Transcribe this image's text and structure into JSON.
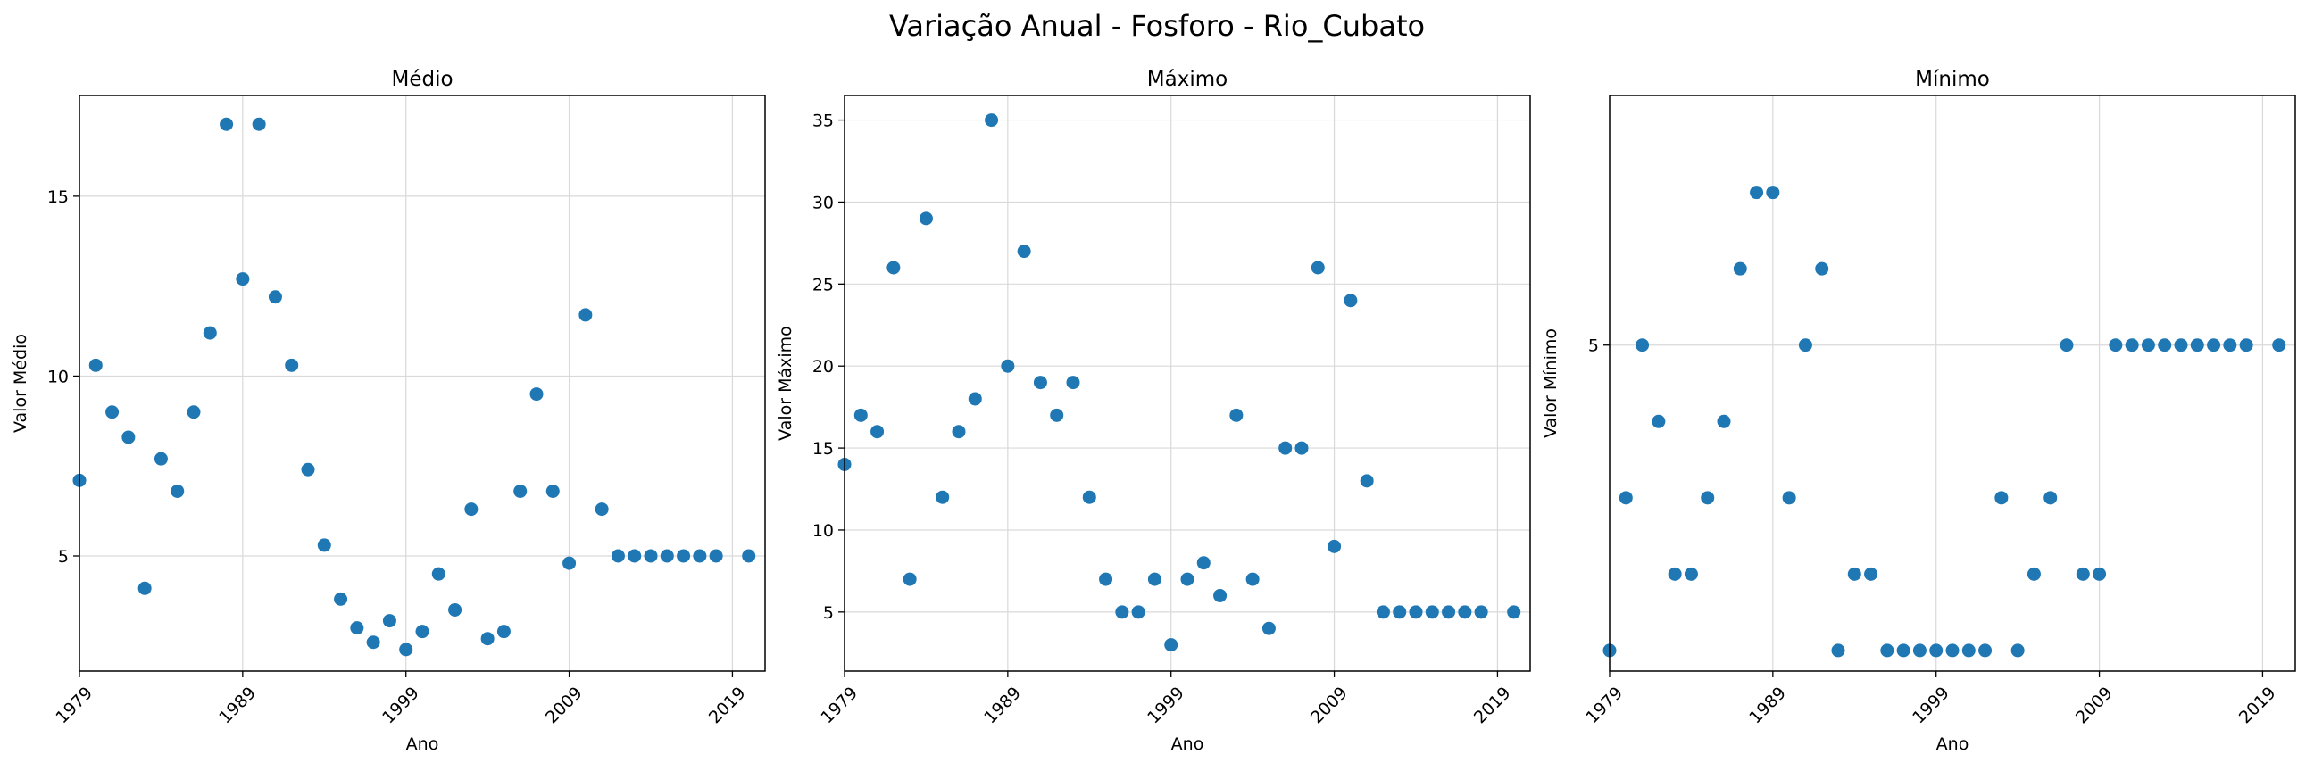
{
  "figure": {
    "title": "Variação Anual - Fosforo - Rio_Cubato"
  },
  "colors": {
    "point": "#1f77b4",
    "grid": "#d9d9d9",
    "axis": "#000000"
  },
  "chart_data": [
    {
      "type": "scatter",
      "title": "Médio",
      "xlabel": "Ano",
      "ylabel": "Valor Médio",
      "grid": true,
      "xlim": [
        1979,
        2021
      ],
      "ylim": [
        1.8,
        17.8
      ],
      "xticks": [
        "1979",
        "1989",
        "1999",
        "2009",
        "2019"
      ],
      "yticks": [
        "5",
        "10",
        "15"
      ],
      "series": [
        {
          "x": [
            1979,
            1980,
            1981,
            1982,
            1983,
            1984,
            1985,
            1986,
            1987,
            1988,
            1989,
            1990,
            1991,
            1992,
            1993,
            1994,
            1995,
            1996,
            1997,
            1998,
            1999,
            2000,
            2001,
            2002,
            2003,
            2004,
            2005,
            2006,
            2007,
            2008,
            2009,
            2010,
            2011,
            2012,
            2013,
            2014,
            2015,
            2016,
            2017,
            2018,
            2020
          ],
          "y": [
            7.1,
            10.3,
            9.0,
            8.3,
            4.1,
            7.7,
            6.8,
            9.0,
            11.2,
            17.0,
            12.7,
            17.0,
            12.2,
            10.3,
            7.4,
            5.3,
            3.8,
            3.0,
            2.6,
            3.2,
            2.4,
            2.9,
            4.5,
            3.5,
            6.3,
            2.7,
            2.9,
            6.8,
            9.5,
            6.8,
            4.8,
            11.7,
            6.3,
            5.0,
            5.0,
            5.0,
            5.0,
            5.0,
            5.0,
            5.0,
            5.0
          ]
        }
      ]
    },
    {
      "type": "scatter",
      "title": "Máximo",
      "xlabel": "Ano",
      "ylabel": "Valor Máximo",
      "grid": true,
      "xlim": [
        1979,
        2021
      ],
      "ylim": [
        1.4,
        36.5
      ],
      "xticks": [
        "1979",
        "1989",
        "1999",
        "2009",
        "2019"
      ],
      "yticks": [
        "5",
        "10",
        "15",
        "20",
        "25",
        "30",
        "35"
      ],
      "series": [
        {
          "x": [
            1979,
            1980,
            1981,
            1982,
            1983,
            1984,
            1985,
            1986,
            1987,
            1988,
            1989,
            1990,
            1991,
            1992,
            1993,
            1994,
            1995,
            1996,
            1997,
            1998,
            1999,
            2000,
            2001,
            2002,
            2003,
            2004,
            2005,
            2006,
            2007,
            2008,
            2009,
            2010,
            2011,
            2012,
            2013,
            2014,
            2015,
            2016,
            2017,
            2018,
            2020
          ],
          "y": [
            14,
            17,
            16,
            26,
            7,
            29,
            12,
            16,
            18,
            35,
            20,
            27,
            19,
            17,
            19,
            12,
            7,
            5,
            5,
            7,
            3,
            7,
            8,
            6,
            17,
            7,
            4,
            15,
            15,
            26,
            9,
            24,
            13,
            5,
            5,
            5,
            5,
            5,
            5,
            5,
            5
          ]
        }
      ]
    },
    {
      "type": "scatter",
      "title": "Mínimo",
      "xlabel": "Ano",
      "ylabel": "Valor Mínimo",
      "grid": true,
      "xlim": [
        1979,
        2021
      ],
      "ylim": [
        0.73,
        8.27
      ],
      "xticks": [
        "1979",
        "1989",
        "1999",
        "2009",
        "2019"
      ],
      "yticks": [
        "5"
      ],
      "series": [
        {
          "x": [
            1979,
            1980,
            1981,
            1982,
            1983,
            1984,
            1985,
            1986,
            1987,
            1988,
            1989,
            1990,
            1991,
            1992,
            1993,
            1994,
            1995,
            1996,
            1997,
            1998,
            1999,
            2000,
            2001,
            2002,
            2003,
            2004,
            2005,
            2006,
            2007,
            2008,
            2009,
            2010,
            2011,
            2012,
            2013,
            2014,
            2015,
            2016,
            2017,
            2018,
            2020
          ],
          "y": [
            1,
            3,
            5,
            4,
            2,
            2,
            3,
            4,
            6,
            7,
            7,
            3,
            5,
            6,
            1,
            2,
            2,
            1,
            1,
            1,
            1,
            1,
            1,
            1,
            3,
            1,
            2,
            3,
            5,
            2,
            2,
            5,
            5,
            5,
            5,
            5,
            5,
            5,
            5,
            5,
            5
          ]
        }
      ]
    }
  ]
}
